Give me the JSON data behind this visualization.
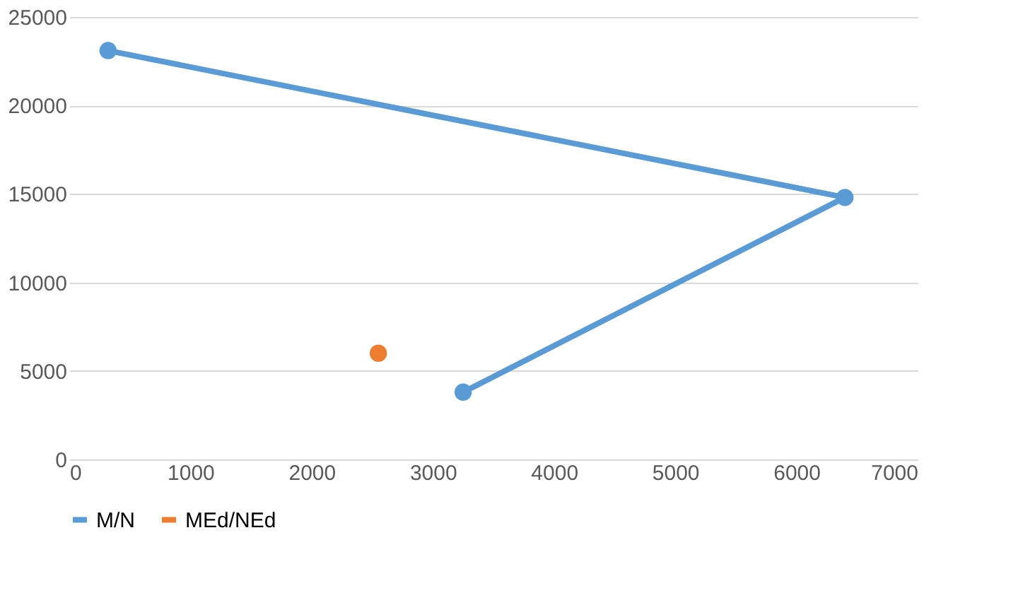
{
  "chart_data": {
    "type": "line",
    "marker": "circle",
    "line_style": "solid",
    "grid": "y",
    "legend": "bottom",
    "xlim": [
      0,
      7000
    ],
    "xticks": [
      0,
      1000,
      2000,
      3000,
      4000,
      5000,
      6000,
      7000
    ],
    "ylim": [
      0,
      25000
    ],
    "yticks": [
      0,
      5000,
      10000,
      15000,
      20000,
      25000
    ],
    "series": [
      {
        "name": "M/N",
        "color": "#5b9bd5",
        "x": [
          320,
          6400,
          3250
        ],
        "values": [
          23100,
          14800,
          3800
        ]
      },
      {
        "name": "MEd/NEd",
        "color": "#ed7d31",
        "x": [
          2550
        ],
        "values": [
          6000
        ]
      }
    ]
  }
}
